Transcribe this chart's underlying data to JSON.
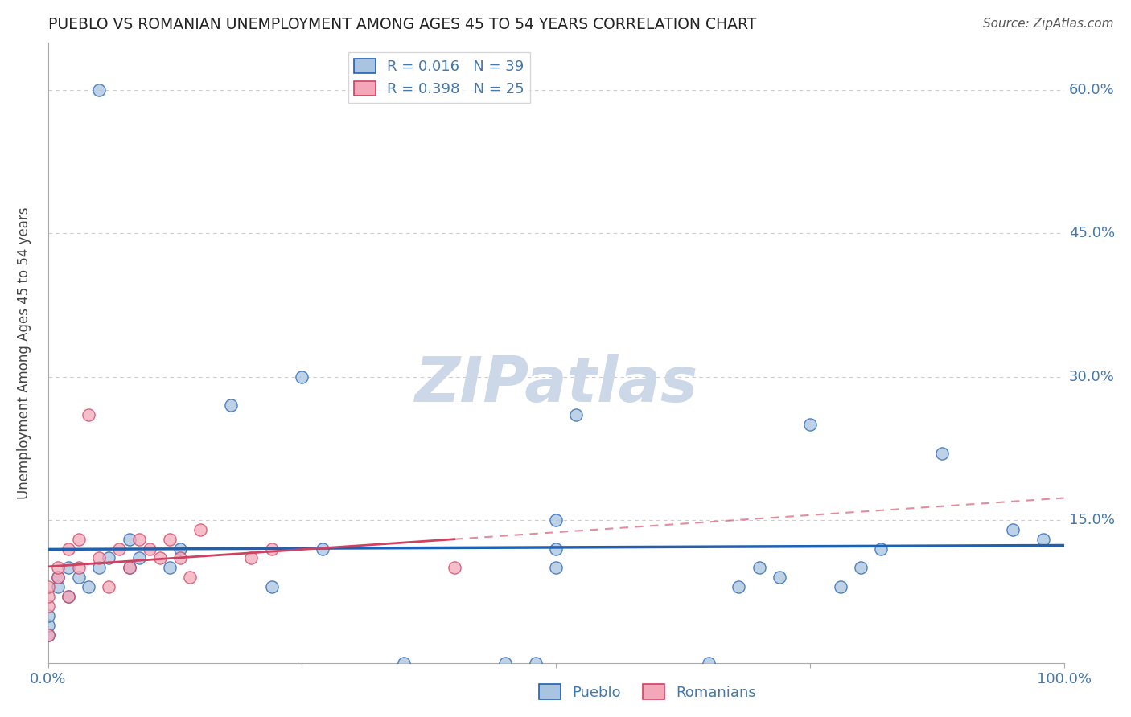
{
  "title": "PUEBLO VS ROMANIAN UNEMPLOYMENT AMONG AGES 45 TO 54 YEARS CORRELATION CHART",
  "source": "Source: ZipAtlas.com",
  "ylabel": "Unemployment Among Ages 45 to 54 years",
  "xlim": [
    0.0,
    1.0
  ],
  "ylim": [
    0.0,
    0.65
  ],
  "xticks": [
    0.0,
    0.25,
    0.5,
    0.75,
    1.0
  ],
  "xticklabels": [
    "0.0%",
    "",
    "",
    "",
    "100.0%"
  ],
  "yticks": [
    0.0,
    0.15,
    0.3,
    0.45,
    0.6
  ],
  "yticklabels": [
    "",
    "15.0%",
    "30.0%",
    "45.0%",
    "60.0%"
  ],
  "pueblo_R": 0.016,
  "pueblo_N": 39,
  "romanian_R": 0.398,
  "romanian_N": 25,
  "pueblo_color": "#a8c4e0",
  "romanian_color": "#f4a7b9",
  "pueblo_line_color": "#2060b0",
  "romanian_line_color": "#d04060",
  "pueblo_scatter_x": [
    0.05,
    0.0,
    0.0,
    0.0,
    0.01,
    0.01,
    0.02,
    0.02,
    0.03,
    0.04,
    0.05,
    0.06,
    0.08,
    0.08,
    0.09,
    0.12,
    0.13,
    0.18,
    0.22,
    0.25,
    0.27,
    0.35,
    0.45,
    0.48,
    0.5,
    0.52,
    0.65,
    0.68,
    0.7,
    0.72,
    0.75,
    0.78,
    0.8,
    0.82,
    0.88,
    0.95,
    0.98,
    0.5,
    0.5
  ],
  "pueblo_scatter_y": [
    0.6,
    0.03,
    0.04,
    0.05,
    0.08,
    0.09,
    0.07,
    0.1,
    0.09,
    0.08,
    0.1,
    0.11,
    0.1,
    0.13,
    0.11,
    0.1,
    0.12,
    0.27,
    0.08,
    0.3,
    0.12,
    0.0,
    0.0,
    0.0,
    0.15,
    0.26,
    0.0,
    0.08,
    0.1,
    0.09,
    0.25,
    0.08,
    0.1,
    0.12,
    0.22,
    0.14,
    0.13,
    0.1,
    0.12
  ],
  "romanian_scatter_x": [
    0.0,
    0.0,
    0.0,
    0.0,
    0.01,
    0.01,
    0.02,
    0.02,
    0.03,
    0.03,
    0.04,
    0.05,
    0.06,
    0.07,
    0.08,
    0.09,
    0.1,
    0.11,
    0.12,
    0.13,
    0.14,
    0.15,
    0.2,
    0.22,
    0.4
  ],
  "romanian_scatter_y": [
    0.06,
    0.07,
    0.08,
    0.03,
    0.09,
    0.1,
    0.07,
    0.12,
    0.1,
    0.13,
    0.26,
    0.11,
    0.08,
    0.12,
    0.1,
    0.13,
    0.12,
    0.11,
    0.13,
    0.11,
    0.09,
    0.14,
    0.11,
    0.12,
    0.1
  ],
  "watermark_color": "#ccd8e8",
  "grid_color": "#cccccc",
  "title_color": "#222222",
  "axis_label_color": "#4477aa",
  "spine_color": "#aaaaaa"
}
